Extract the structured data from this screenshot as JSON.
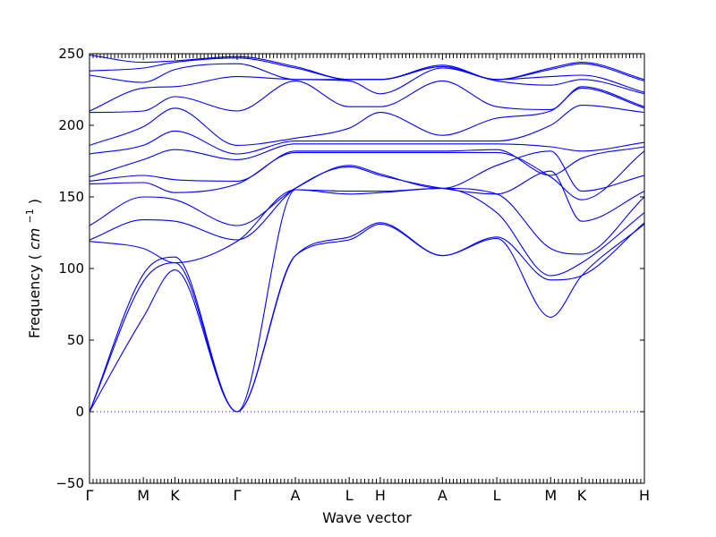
{
  "chart_data": {
    "type": "line",
    "title": "",
    "xlabel": "Wave vector",
    "ylabel": "Frequency",
    "ylabel_unit": "cm",
    "ylabel_unit_exp": "−1",
    "ylim": [
      -50,
      250
    ],
    "yticks": [
      -50,
      0,
      50,
      100,
      150,
      200,
      250
    ],
    "grid": false,
    "x_is_index": true,
    "xlim": [
      0,
      100
    ],
    "xticks": [
      {
        "label": "Γ",
        "x": 0
      },
      {
        "label": "M",
        "x": 9.7
      },
      {
        "label": "K",
        "x": 15.4
      },
      {
        "label": "Γ",
        "x": 26.6
      },
      {
        "label": "A",
        "x": 37.1
      },
      {
        "label": "L",
        "x": 46.8
      },
      {
        "label": "H",
        "x": 52.4
      },
      {
        "label": "A",
        "x": 63.6
      },
      {
        "label": "L",
        "x": 73.4
      },
      {
        "label": "M",
        "x": 83.1
      },
      {
        "label": "K",
        "x": 88.7
      },
      {
        "label": "H",
        "x": 100
      }
    ],
    "zero_line": 0,
    "series": [
      {
        "x": [
          0,
          9.7,
          15.4,
          26.6,
          37.1,
          46.8,
          52.4,
          63.6,
          73.4,
          83.1,
          88.7,
          100
        ],
        "values": [
          0,
          66,
          99,
          0,
          109,
          120,
          131,
          109,
          121,
          66,
          95,
          131
        ]
      },
      {
        "x": [
          0,
          9.7,
          15.4,
          26.6,
          37.1,
          46.8,
          52.4,
          63.6,
          73.4,
          83.1,
          88.7,
          100
        ],
        "values": [
          0,
          91,
          104,
          0,
          109,
          122,
          132,
          109,
          122,
          92,
          95,
          132
        ]
      },
      {
        "x": [
          0,
          9.7,
          15.4,
          26.6,
          37.1,
          46.8,
          52.4,
          63.6,
          73.4,
          83.1,
          88.7,
          100
        ],
        "values": [
          0,
          96,
          108,
          0,
          155,
          152,
          153,
          156,
          139,
          95,
          104,
          139
        ]
      },
      {
        "x": [
          0,
          9.7,
          15.4,
          26.6,
          37.1,
          46.8,
          52.4,
          63.6,
          73.4,
          83.1,
          88.7,
          100
        ],
        "values": [
          119,
          114,
          104,
          119,
          155,
          154,
          154,
          156,
          152,
          114,
          110,
          150
        ]
      },
      {
        "x": [
          0,
          9.7,
          15.4,
          26.6,
          37.1,
          46.8,
          52.4,
          63.6,
          73.4,
          83.1,
          88.7,
          100
        ],
        "values": [
          120,
          134,
          133,
          120,
          156,
          171,
          165,
          156,
          152,
          168,
          133,
          154
        ]
      },
      {
        "x": [
          0,
          9.7,
          15.4,
          26.6,
          37.1,
          46.8,
          52.4,
          63.6,
          73.4,
          83.1,
          88.7,
          100
        ],
        "values": [
          130,
          150,
          148,
          130,
          156,
          172,
          166,
          156,
          172,
          182,
          154,
          165
        ]
      },
      {
        "x": [
          0,
          9.7,
          15.4,
          26.6,
          37.1,
          46.8,
          52.4,
          63.6,
          73.4,
          83.1,
          88.7,
          100
        ],
        "values": [
          159,
          160,
          153,
          159,
          181,
          181,
          181,
          181,
          181,
          164,
          148,
          182
        ]
      },
      {
        "x": [
          0,
          9.7,
          15.4,
          26.6,
          37.1,
          46.8,
          52.4,
          63.6,
          73.4,
          83.1,
          88.7,
          100
        ],
        "values": [
          161,
          165,
          162,
          161,
          182,
          182,
          182,
          182,
          183,
          165,
          177,
          185
        ]
      },
      {
        "x": [
          0,
          9.7,
          15.4,
          26.6,
          37.1,
          46.8,
          52.4,
          63.6,
          73.4,
          83.1,
          88.7,
          100
        ],
        "values": [
          164,
          176,
          183,
          176,
          187,
          187,
          187,
          187,
          187,
          185,
          182,
          188
        ]
      },
      {
        "x": [
          0,
          9.7,
          15.4,
          26.6,
          37.1,
          46.8,
          52.4,
          63.6,
          73.4,
          83.1,
          88.7,
          100
        ],
        "values": [
          180,
          186,
          196,
          180,
          189,
          189,
          189,
          189,
          189,
          200,
          214,
          209
        ]
      },
      {
        "x": [
          0,
          9.7,
          15.4,
          26.6,
          37.1,
          46.8,
          52.4,
          63.6,
          73.4,
          83.1,
          88.7,
          100
        ],
        "values": [
          186,
          199,
          212,
          186,
          191,
          198,
          209,
          193,
          205,
          210,
          226,
          212
        ]
      },
      {
        "x": [
          0,
          9.7,
          15.4,
          26.6,
          37.1,
          46.8,
          52.4,
          63.6,
          73.4,
          83.1,
          88.7,
          100
        ],
        "values": [
          209,
          210,
          220,
          210,
          231,
          213,
          213,
          231,
          213,
          211,
          227,
          213
        ]
      },
      {
        "x": [
          0,
          9.7,
          15.4,
          26.6,
          37.1,
          46.8,
          52.4,
          63.6,
          73.4,
          83.1,
          88.7,
          100
        ],
        "values": [
          210,
          226,
          227,
          234,
          232,
          231,
          222,
          240,
          231,
          228,
          232,
          222
        ]
      },
      {
        "x": [
          0,
          9.7,
          15.4,
          26.6,
          37.1,
          46.8,
          52.4,
          63.6,
          73.4,
          83.1,
          88.7,
          100
        ],
        "values": [
          235,
          230,
          239,
          243,
          232,
          232,
          232,
          241,
          232,
          234,
          235,
          223
        ]
      },
      {
        "x": [
          0,
          9.7,
          15.4,
          26.6,
          37.1,
          46.8,
          52.4,
          63.6,
          73.4,
          83.1,
          88.7,
          100
        ],
        "values": [
          238,
          240,
          244,
          247,
          240,
          232,
          232,
          241,
          232,
          239,
          243,
          231
        ]
      },
      {
        "x": [
          0,
          9.7,
          15.4,
          26.6,
          37.1,
          46.8,
          52.4,
          63.6,
          73.4,
          83.1,
          88.7,
          100
        ],
        "values": [
          249,
          244,
          245,
          248,
          241,
          232,
          232,
          242,
          232,
          240,
          244,
          232
        ]
      }
    ]
  }
}
